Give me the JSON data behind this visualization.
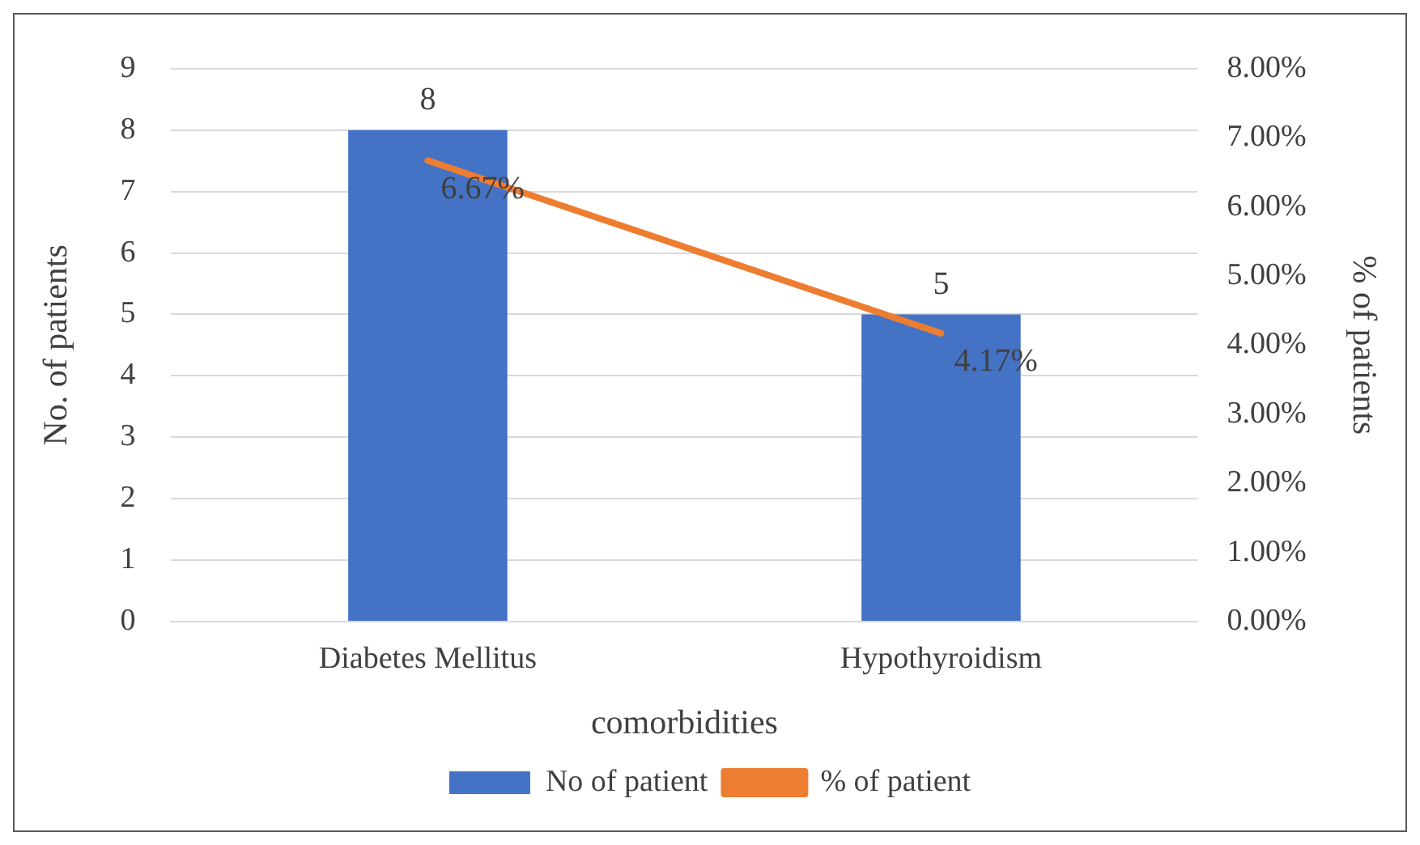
{
  "chart_data": {
    "type": "bar",
    "xlabel": "comorbidities",
    "ylabel": "No. of patients",
    "y2label": "% of patients",
    "categories": [
      "Diabetes Mellitus",
      "Hypothyroidism"
    ],
    "series": [
      {
        "name": "No of patient",
        "color": "#4472c4",
        "values": [
          8,
          5
        ],
        "value_labels": [
          "8",
          "5"
        ]
      },
      {
        "name": "% of patient",
        "type": "line",
        "axis": "y2",
        "color": "#ed7d31",
        "values": [
          6.67,
          4.17
        ],
        "value_labels": [
          "6.67%",
          "4.17%"
        ],
        "marker": "none"
      }
    ],
    "ylim": [
      0,
      9
    ],
    "yticks": [
      0,
      1,
      2,
      3,
      4,
      5,
      6,
      7,
      8,
      9
    ],
    "y2lim": [
      0,
      8
    ],
    "y2ticks": [
      {
        "value": 0,
        "label": "0.00%"
      },
      {
        "value": 1,
        "label": "1.00%"
      },
      {
        "value": 2,
        "label": "2.00%"
      },
      {
        "value": 3,
        "label": "3.00%"
      },
      {
        "value": 4,
        "label": "4.00%"
      },
      {
        "value": 5,
        "label": "5.00%"
      },
      {
        "value": 6,
        "label": "6.00%"
      },
      {
        "value": 7,
        "label": "7.00%"
      },
      {
        "value": 8,
        "label": "8.00%"
      }
    ],
    "grid": "y",
    "legend": "bottom"
  }
}
